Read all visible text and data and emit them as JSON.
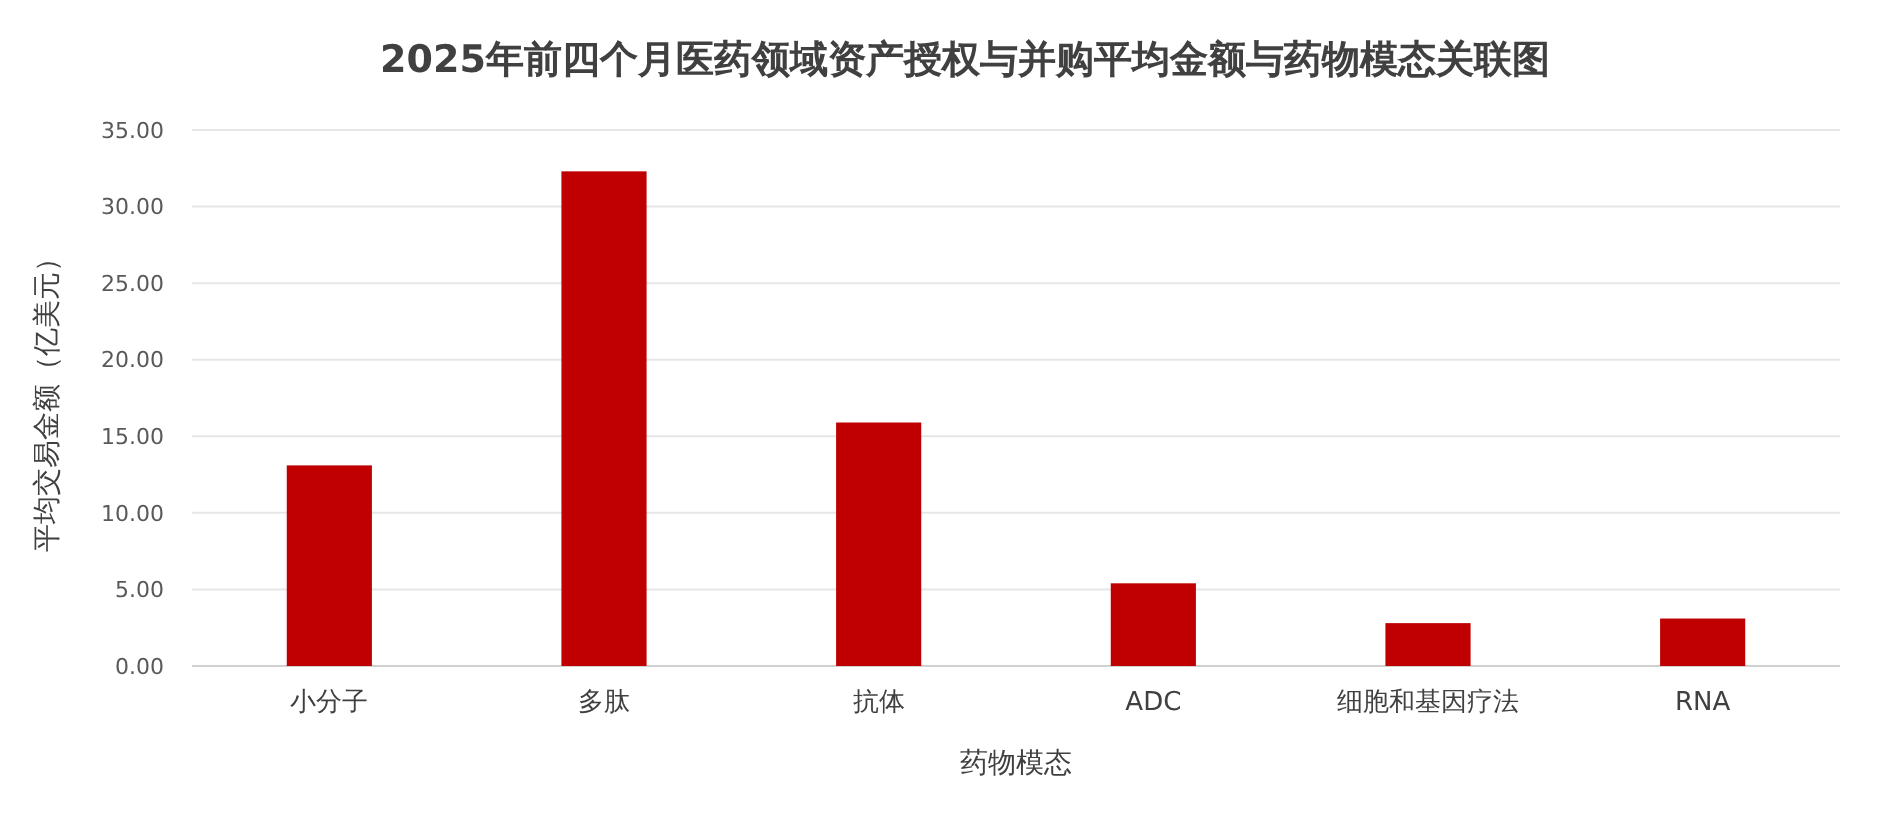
{
  "chart_data": {
    "type": "bar",
    "title": "2025年前四个月医药领域资产授权与并购平均金额与药物模态关联图",
    "xlabel": "药物模态",
    "ylabel": "平均交易金额（亿美元）",
    "categories": [
      "小分子",
      "多肽",
      "抗体",
      "ADC",
      "细胞和基因疗法",
      "RNA"
    ],
    "values": [
      13.1,
      32.3,
      15.9,
      5.4,
      2.8,
      3.1
    ],
    "color": "#c00000",
    "ylim": [
      0,
      35
    ],
    "yticks": [
      {
        "value": 0,
        "label": "0.00"
      },
      {
        "value": 5,
        "label": "5.00"
      },
      {
        "value": 10,
        "label": "10.00"
      },
      {
        "value": 15,
        "label": "15.00"
      },
      {
        "value": 20,
        "label": "20.00"
      },
      {
        "value": 25,
        "label": "25.00"
      },
      {
        "value": 30,
        "label": "30.00"
      },
      {
        "value": 35,
        "label": "35.00"
      }
    ],
    "grid": "y"
  }
}
